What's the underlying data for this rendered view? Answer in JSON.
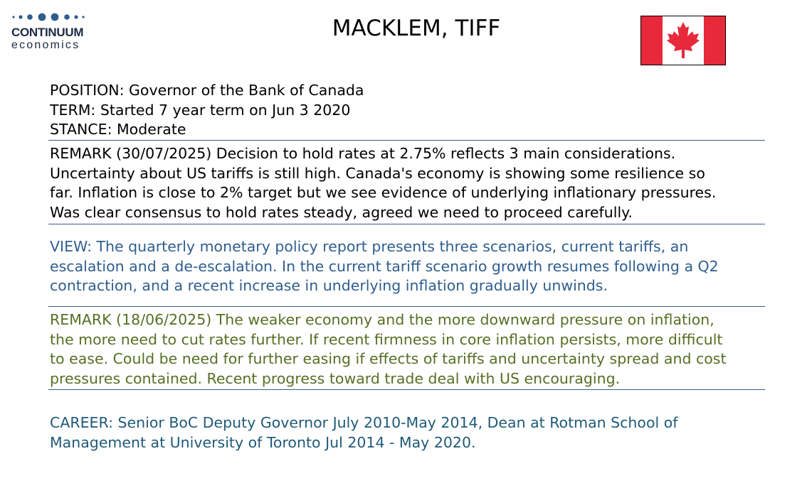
{
  "logo": {
    "name": "CONTINUUM",
    "sub": "economics",
    "accent": "#2f5e8e"
  },
  "title": "MACKLEM, TIFF",
  "flag": {
    "icon": "canada-flag-icon",
    "red": "#e8283b",
    "white": "#ffffff"
  },
  "profile": {
    "position": "POSITION: Governor of the Bank of Canada",
    "term": "TERM: Started 7 year term on Jun 3 2020",
    "stance": "STANCE: Moderate"
  },
  "remark1": {
    "color": "#000000",
    "lines": [
      "REMARK (30/07/2025) Decision to hold rates at 2.75% reflects 3 main considerations.",
      "Uncertainty about US tariffs is still high. Canada's economy is showing some resilience so",
      "far.  Inflation is close to 2% target but we see evidence of underlying inflationary pressures.",
      "Was clear consensus to hold rates steady, agreed we need to proceed carefully."
    ]
  },
  "view": {
    "color": "#2f5e8e",
    "lines": [
      "VIEW: The quarterly monetary policy report presents three scenarios, current tariffs, an",
      "escalation and a de-escalation.  In the current tariff scenario growth resumes following a Q2",
      "contraction, and a recent increase in underlying inflation gradually unwinds."
    ]
  },
  "remark2": {
    "color": "#586e24",
    "lines": [
      "REMARK (18/06/2025) The weaker economy and the more downward pressure on inflation,",
      "the more need to cut rates further. If recent firmness in core inflation persists, more difficult",
      "to ease. Could be  need for further easing if effects of tariffs and uncertainty spread and cost",
      "pressures contained. Recent progress toward trade deal with US encouraging."
    ]
  },
  "career": {
    "color": "#1f5a78",
    "lines": [
      "CAREER: Senior BoC Deputy Governor July 2010-May 2014, Dean at Rotman School of",
      "Management at University of Toronto Jul 2014 - May 2020."
    ]
  }
}
